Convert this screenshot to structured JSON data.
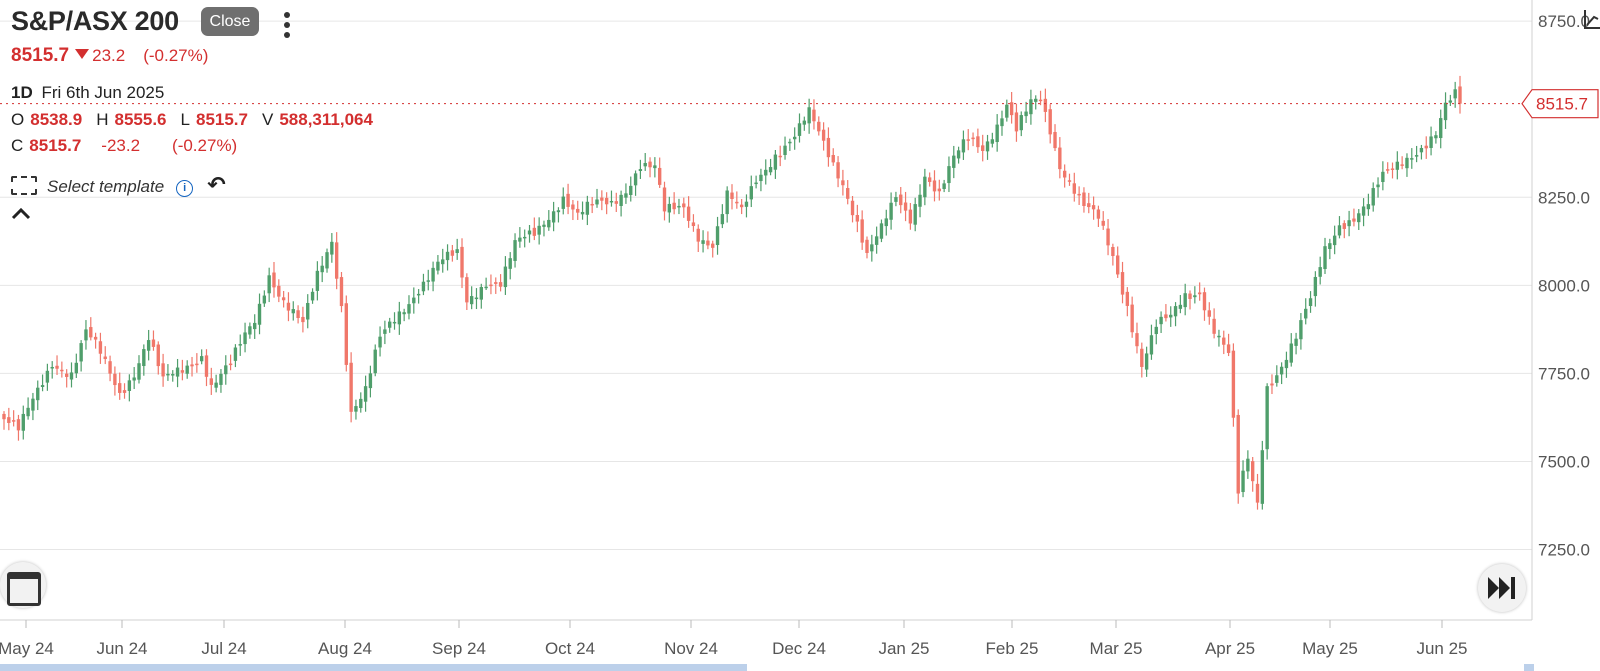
{
  "header": {
    "title": "S&P/ASX 200",
    "close_button": "Close",
    "menu_icon": "vertical-dots-icon"
  },
  "quote": {
    "price": "8515.7",
    "direction_icon": "down-triangle-icon",
    "change": "23.2",
    "change_pct": "(-0.27%)"
  },
  "bar_info": {
    "interval": "1D",
    "date": "Fri 6th Jun 2025",
    "o_label": "O",
    "o_value": "8538.9",
    "h_label": "H",
    "h_value": "8555.6",
    "l_label": "L",
    "l_value": "8515.7",
    "v_label": "V",
    "v_value": "588,311,064",
    "c_label": "C",
    "c_value": "8515.7",
    "c_change": "-23.2",
    "c_change_pct": "(-0.27%)"
  },
  "toolbar": {
    "template_label": "Select template",
    "info_icon": "info-icon",
    "undo_icon": "undo-icon",
    "collapse_icon": "chevron-up-icon",
    "calendar_icon": "calendar-icon",
    "fast_forward_icon": "skip-to-end-icon"
  },
  "colors": {
    "up": "#4f9e6b",
    "down": "#f0776a",
    "accent": "#d32f2f",
    "grid": "#e6e6e6"
  },
  "chart_data": {
    "type": "candlestick",
    "title": "",
    "xlabel": "",
    "ylabel": "",
    "x_ticks": [
      "May 24",
      "Jun 24",
      "Jul 24",
      "Aug 24",
      "Sep 24",
      "Oct 24",
      "Nov 24",
      "Dec 24",
      "Jan 25",
      "Feb 25",
      "Mar 25",
      "Apr 25",
      "May 25",
      "Jun 25"
    ],
    "y_ticks": [
      "8750.0",
      "8250.0",
      "8000.0",
      "7750.0",
      "7500.0",
      "7250.0"
    ],
    "ylim": [
      7050,
      8810
    ],
    "last_price_label": "8515.7",
    "last_price": 8515.7,
    "grid": true,
    "anchors": [
      [
        0,
        7620
      ],
      [
        3,
        7580
      ],
      [
        10,
        7790
      ],
      [
        14,
        7750
      ],
      [
        17,
        7860
      ],
      [
        20,
        7800
      ],
      [
        24,
        7700
      ],
      [
        27,
        7760
      ],
      [
        30,
        7850
      ],
      [
        33,
        7720
      ],
      [
        37,
        7760
      ],
      [
        41,
        7810
      ],
      [
        43,
        7720
      ],
      [
        47,
        7770
      ],
      [
        50,
        7850
      ],
      [
        52,
        7900
      ],
      [
        55,
        8040
      ],
      [
        58,
        7960
      ],
      [
        62,
        7880
      ],
      [
        65,
        8020
      ],
      [
        68,
        8130
      ],
      [
        70,
        7950
      ],
      [
        72,
        7650
      ],
      [
        75,
        7700
      ],
      [
        78,
        7840
      ],
      [
        82,
        7920
      ],
      [
        86,
        8000
      ],
      [
        90,
        8060
      ],
      [
        94,
        8080
      ],
      [
        96,
        7950
      ],
      [
        100,
        8020
      ],
      [
        103,
        8010
      ],
      [
        106,
        8110
      ],
      [
        110,
        8140
      ],
      [
        113,
        8200
      ],
      [
        116,
        8260
      ],
      [
        119,
        8200
      ],
      [
        122,
        8220
      ],
      [
        126,
        8230
      ],
      [
        129,
        8280
      ],
      [
        132,
        8350
      ],
      [
        135,
        8330
      ],
      [
        137,
        8200
      ],
      [
        141,
        8220
      ],
      [
        144,
        8150
      ],
      [
        147,
        8120
      ],
      [
        150,
        8250
      ],
      [
        153,
        8200
      ],
      [
        156,
        8300
      ],
      [
        160,
        8380
      ],
      [
        164,
        8420
      ],
      [
        167,
        8480
      ],
      [
        170,
        8400
      ],
      [
        172,
        8350
      ],
      [
        174,
        8300
      ],
      [
        177,
        8180
      ],
      [
        179,
        8080
      ],
      [
        182,
        8150
      ],
      [
        185,
        8250
      ],
      [
        188,
        8200
      ],
      [
        191,
        8320
      ],
      [
        194,
        8250
      ],
      [
        197,
        8350
      ],
      [
        200,
        8420
      ],
      [
        203,
        8400
      ],
      [
        206,
        8460
      ],
      [
        208,
        8510
      ],
      [
        210,
        8430
      ],
      [
        213,
        8510
      ],
      [
        215,
        8530
      ],
      [
        217,
        8450
      ],
      [
        219,
        8350
      ],
      [
        221,
        8300
      ],
      [
        224,
        8220
      ],
      [
        227,
        8180
      ],
      [
        230,
        8080
      ],
      [
        233,
        7950
      ],
      [
        236,
        7780
      ],
      [
        239,
        7880
      ],
      [
        242,
        7900
      ],
      [
        245,
        7970
      ],
      [
        248,
        7990
      ],
      [
        251,
        7880
      ],
      [
        254,
        7800
      ],
      [
        256,
        7400
      ],
      [
        258,
        7500
      ],
      [
        260,
        7380
      ],
      [
        262,
        7720
      ],
      [
        265,
        7780
      ],
      [
        268,
        7850
      ],
      [
        271,
        7950
      ],
      [
        274,
        8100
      ],
      [
        277,
        8180
      ],
      [
        280,
        8200
      ],
      [
        283,
        8230
      ],
      [
        286,
        8300
      ],
      [
        289,
        8340
      ],
      [
        292,
        8380
      ],
      [
        295,
        8410
      ],
      [
        297,
        8430
      ],
      [
        299,
        8500
      ],
      [
        301,
        8530
      ],
      [
        302,
        8515.7
      ]
    ],
    "n_candles": 303
  }
}
